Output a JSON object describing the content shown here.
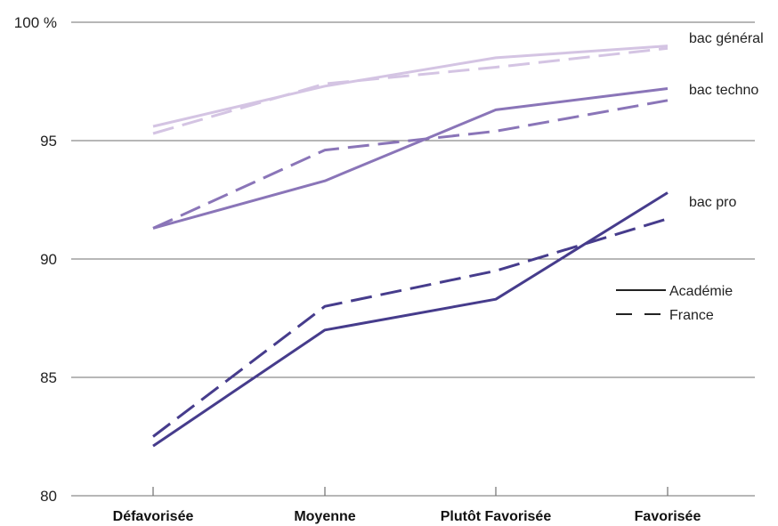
{
  "chart_data": {
    "type": "line",
    "categories": [
      "Défavorisée",
      "Moyenne",
      "Plutôt Favorisée",
      "Favorisée"
    ],
    "ylim": [
      80,
      100
    ],
    "yticks": [
      80,
      85,
      90,
      95,
      100
    ],
    "ytick_labels": [
      "80",
      "85",
      "90",
      "95",
      "100 %"
    ],
    "grid": true,
    "legend_position": "right",
    "legend": [
      {
        "label": "Académie",
        "style": "solid"
      },
      {
        "label": "France",
        "style": "dashed"
      }
    ],
    "groups": [
      {
        "label": "bac général",
        "color": "#d4c4e3",
        "series": [
          {
            "name": "Académie",
            "style": "solid",
            "values": [
              95.6,
              97.3,
              98.5,
              99.0
            ]
          },
          {
            "name": "France",
            "style": "dashed",
            "values": [
              95.3,
              97.4,
              98.1,
              98.9
            ]
          }
        ]
      },
      {
        "label": "bac techno",
        "color": "#8a75b8",
        "series": [
          {
            "name": "Académie",
            "style": "solid",
            "values": [
              91.3,
              93.3,
              96.3,
              97.2
            ]
          },
          {
            "name": "France",
            "style": "dashed",
            "values": [
              91.3,
              94.6,
              95.4,
              96.7
            ]
          }
        ]
      },
      {
        "label": "bac pro",
        "color": "#463c8c",
        "series": [
          {
            "name": "Académie",
            "style": "solid",
            "values": [
              82.1,
              87.0,
              88.3,
              92.8
            ]
          },
          {
            "name": "France",
            "style": "dashed",
            "values": [
              82.5,
              88.0,
              89.5,
              91.7
            ]
          }
        ]
      }
    ]
  }
}
